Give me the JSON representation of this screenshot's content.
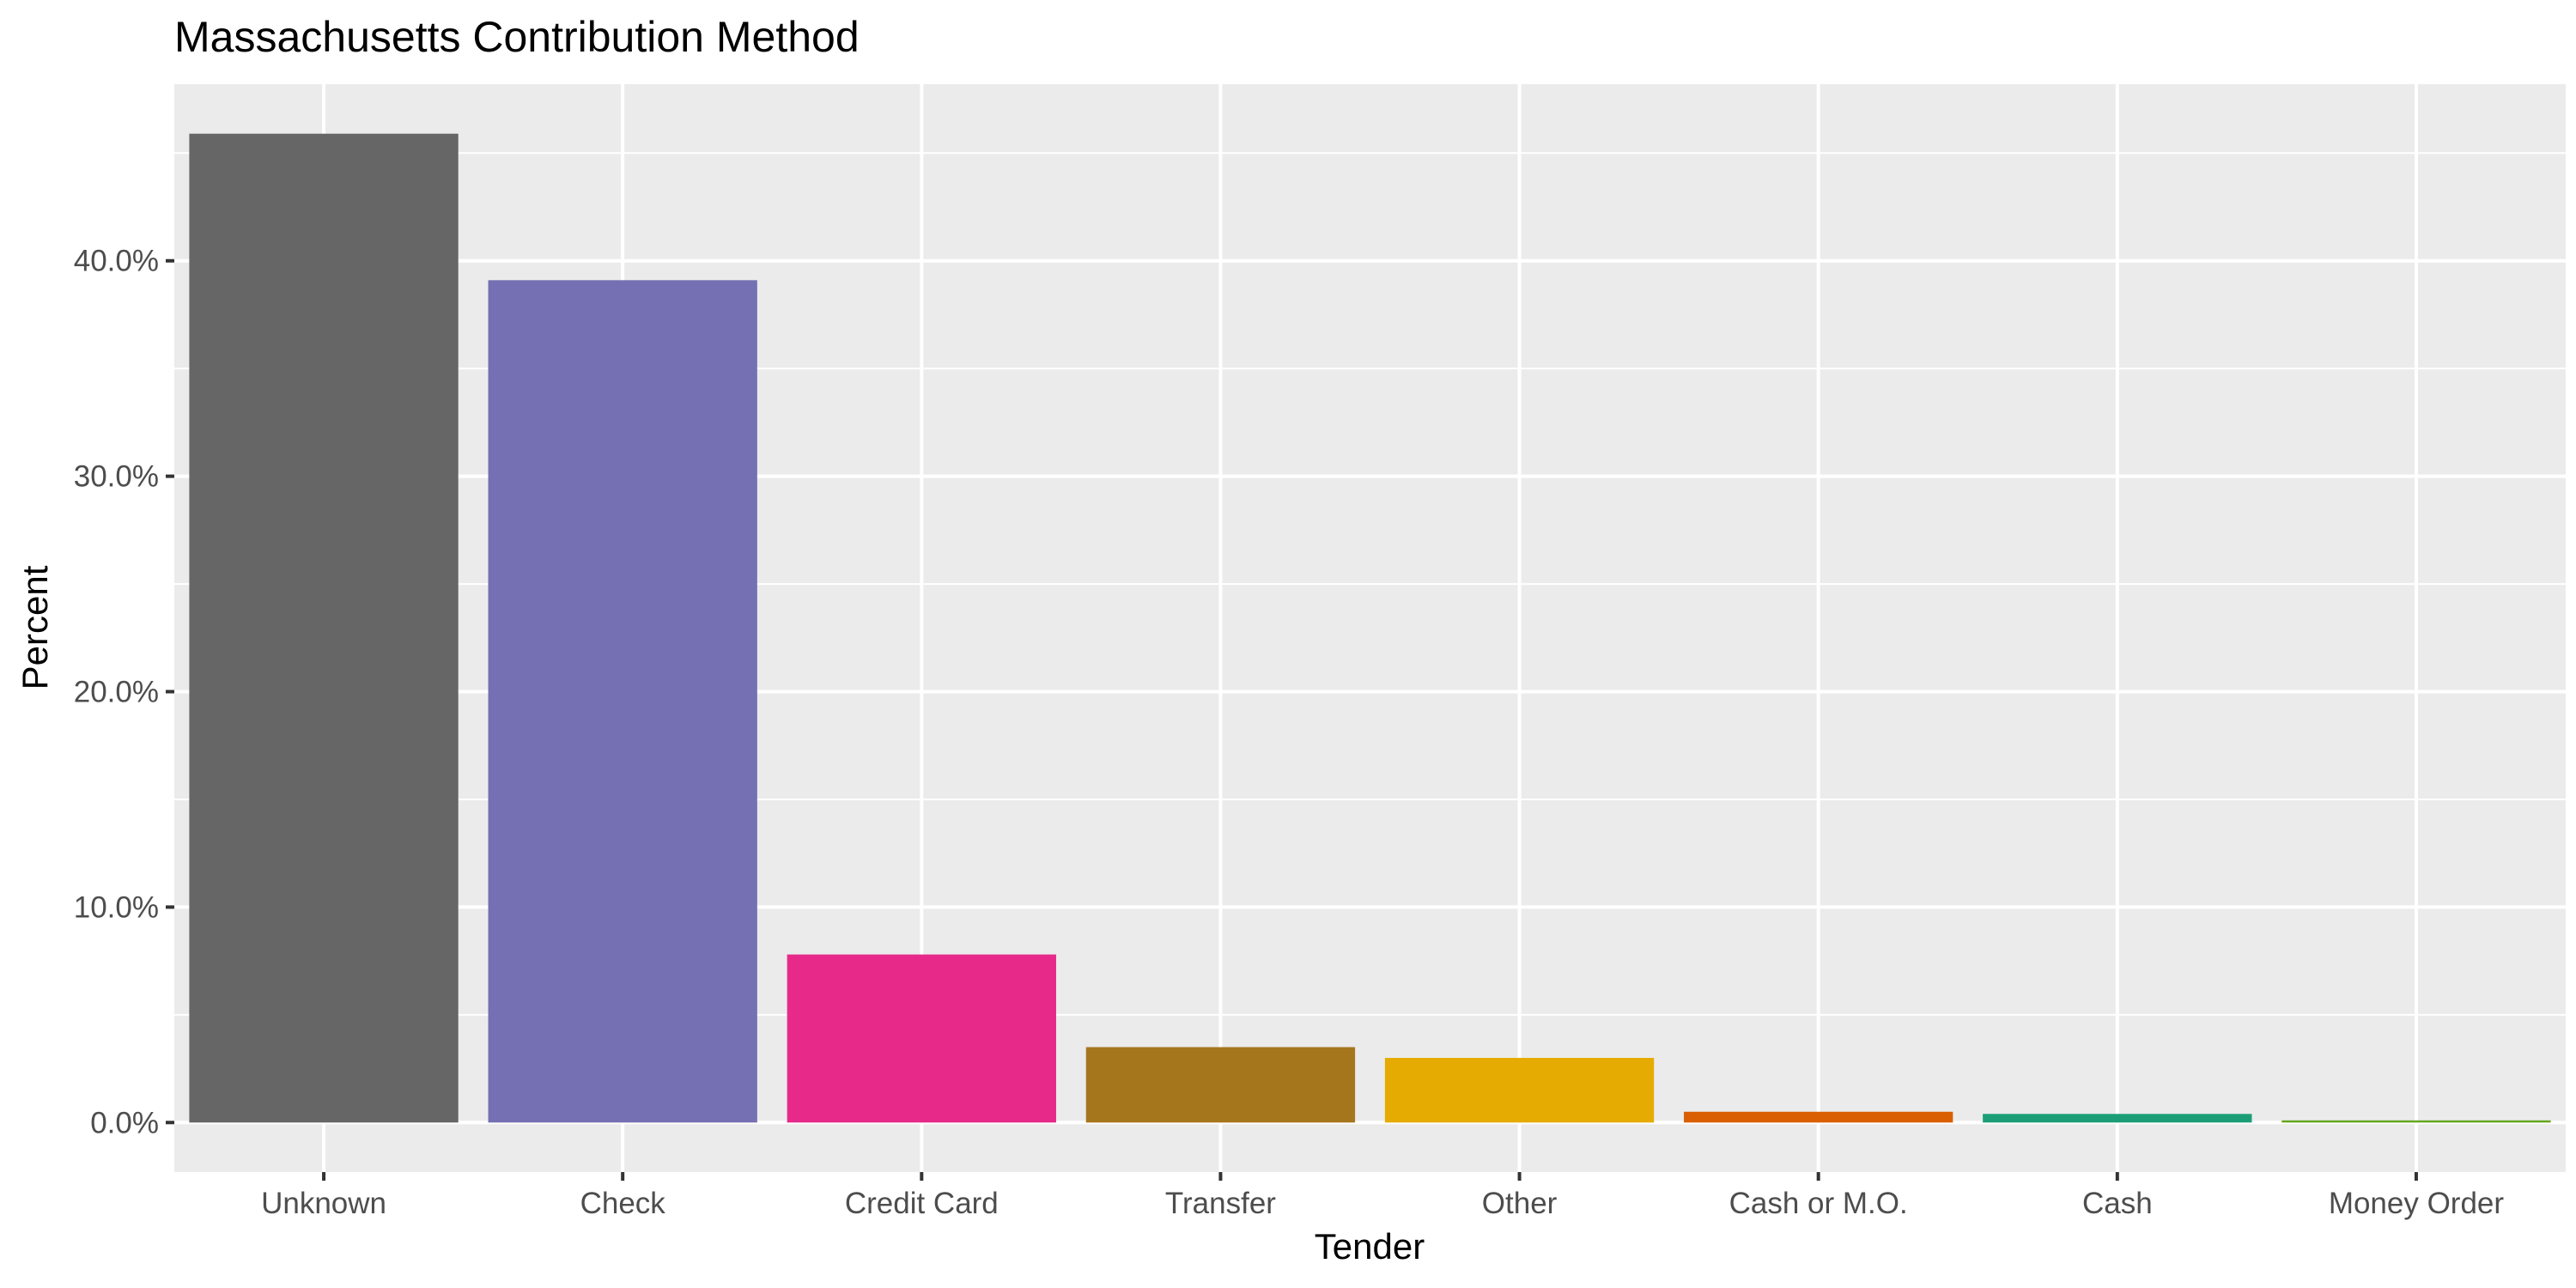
{
  "chart_data": {
    "type": "bar",
    "title": "Massachusetts Contribution Method",
    "xlabel": "Tender",
    "ylabel": "Percent",
    "categories": [
      "Unknown",
      "Check",
      "Credit Card",
      "Transfer",
      "Other",
      "Cash or M.O.",
      "Cash",
      "Money Order"
    ],
    "values": [
      45.9,
      39.1,
      7.8,
      3.5,
      3.0,
      0.5,
      0.4,
      0.1
    ],
    "colors": [
      "#666666",
      "#7570b3",
      "#e7298a",
      "#a6761d",
      "#e6ab02",
      "#d95f02",
      "#1b9e77",
      "#66a61e"
    ],
    "y_ticks": [
      0,
      10,
      20,
      30,
      40
    ],
    "y_tick_labels": [
      "0.0%",
      "10.0%",
      "20.0%",
      "30.0%",
      "40.0%"
    ],
    "ylim": [
      -2.3,
      48.2
    ],
    "grid": true,
    "legend": "none",
    "panel_background": "#ebebeb",
    "grid_color": "#ffffff"
  }
}
